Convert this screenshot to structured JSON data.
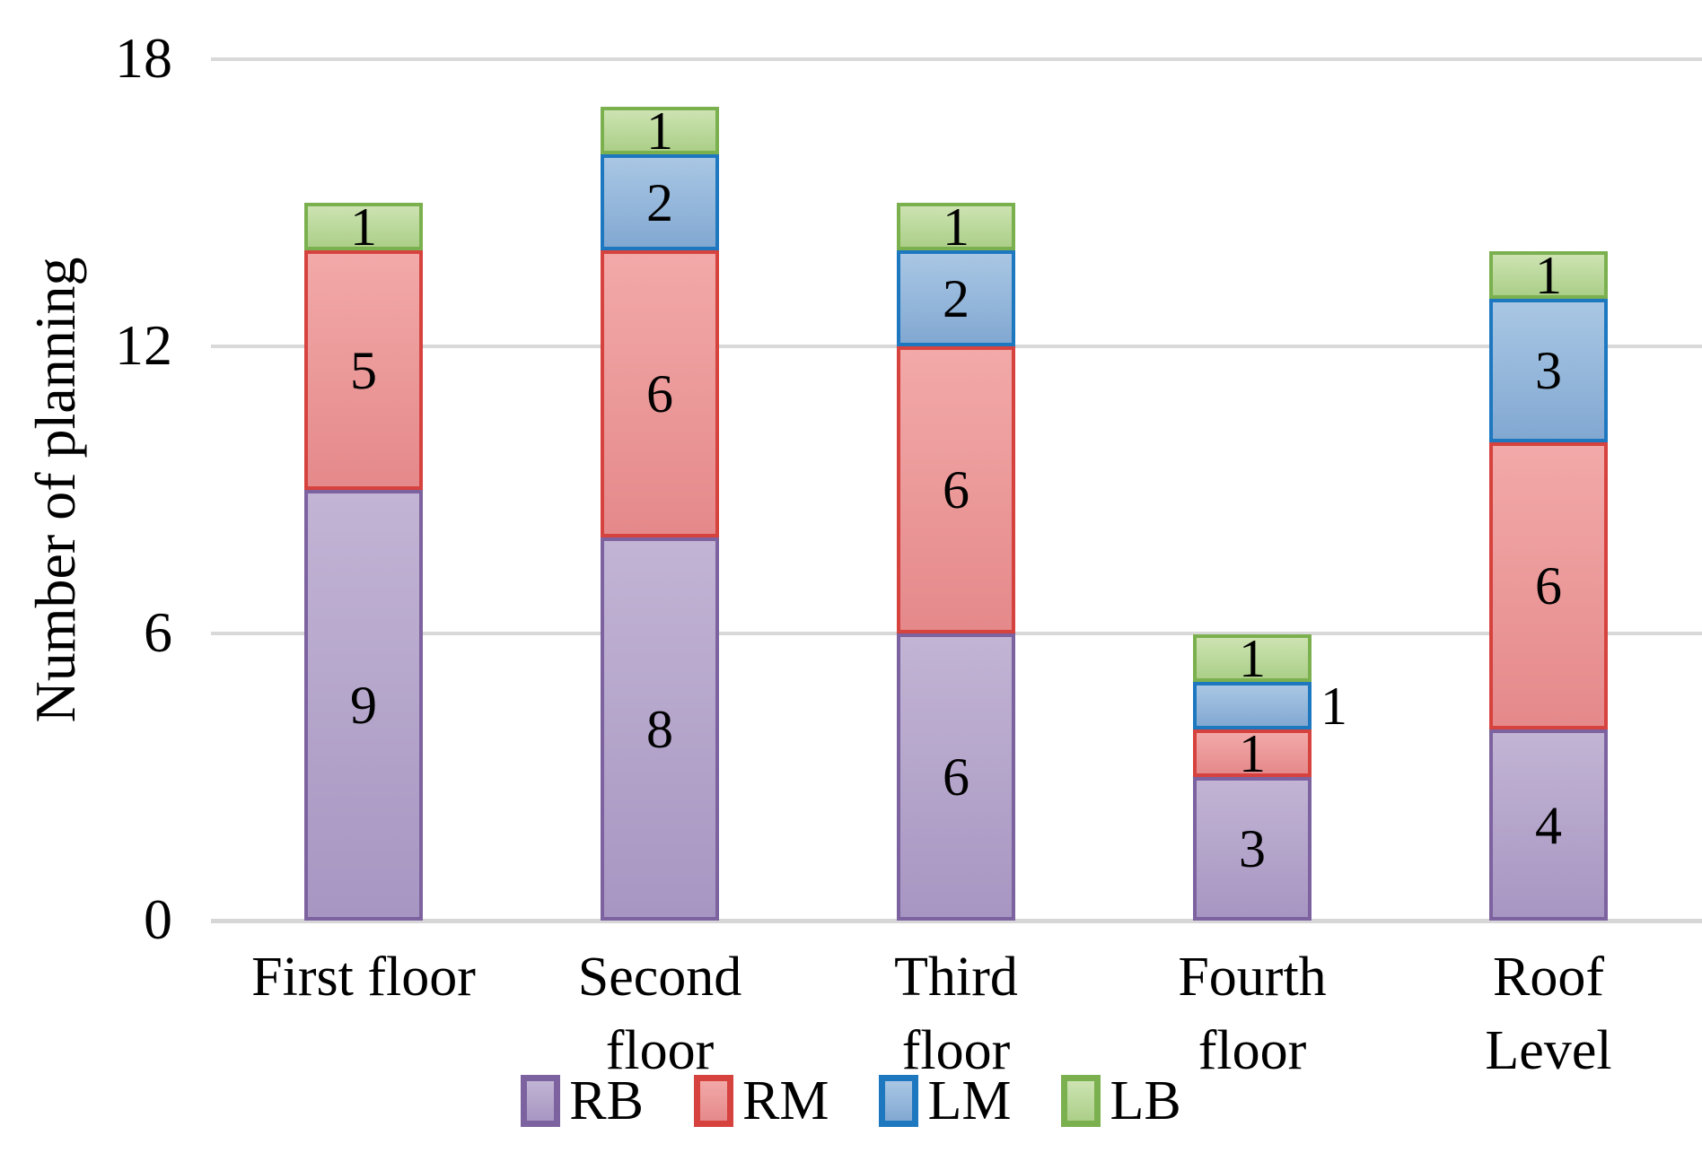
{
  "chart_data": {
    "type": "bar",
    "variant": "stacked-vertical",
    "title": "",
    "ylabel": "Number of planning",
    "xlabel": "",
    "ylim": [
      0,
      18
    ],
    "yticks": [
      0,
      6,
      12,
      18
    ],
    "grid": "horizontal",
    "legend_position": "bottom",
    "categories": [
      "First floor",
      "Second floor",
      "Third floor",
      "Fourth floor",
      "Roof Level"
    ],
    "category_label_lines": [
      [
        "First floor"
      ],
      [
        "Second",
        "floor"
      ],
      [
        "Third",
        "floor"
      ],
      [
        "Fourth",
        "floor"
      ],
      [
        "Roof",
        "Level"
      ]
    ],
    "series": [
      {
        "name": "RB",
        "values": [
          9,
          8,
          6,
          3,
          4
        ]
      },
      {
        "name": "RM",
        "values": [
          5,
          6,
          6,
          1,
          6
        ]
      },
      {
        "name": "LM",
        "values": [
          0,
          2,
          2,
          1,
          3
        ]
      },
      {
        "name": "LB",
        "values": [
          1,
          1,
          1,
          1,
          1
        ]
      }
    ],
    "stack_totals": [
      15,
      17,
      15,
      6,
      14
    ],
    "outside_value_labels": [
      {
        "category_index": 3,
        "series": "LM",
        "side": "right"
      }
    ],
    "colors": {
      "RB": {
        "fill_top": "#c2b4d4",
        "fill_bottom": "#a796c2",
        "border": "#7d62a0"
      },
      "RM": {
        "fill_top": "#f2a9a8",
        "fill_bottom": "#e5898b",
        "border": "#d6423e"
      },
      "LM": {
        "fill_top": "#a9c7e4",
        "fill_bottom": "#82a8d2",
        "border": "#1e78c0"
      },
      "LB": {
        "fill_top": "#cde3b2",
        "fill_bottom": "#abcf88",
        "border": "#7bb04f"
      },
      "gridline": "#d9d9d9",
      "baseline": "#d6d6d6",
      "text": "#000000"
    }
  },
  "legend": {
    "items": [
      {
        "label": "RB"
      },
      {
        "label": "RM"
      },
      {
        "label": "LM"
      },
      {
        "label": "LB"
      }
    ]
  }
}
